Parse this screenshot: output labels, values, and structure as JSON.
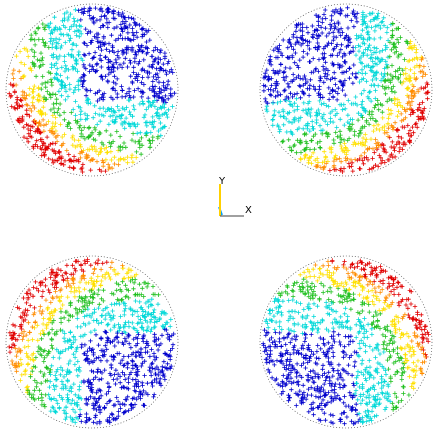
{
  "view": {
    "background": "#ffffff",
    "marker": "+",
    "field_colors": [
      "#e00000",
      "#ff8c00",
      "#ffe000",
      "#20c020",
      "#00d8d8",
      "#0000cc"
    ]
  },
  "triad": {
    "y_label": "Y",
    "x_label": "X",
    "axis_colors": {
      "y": "#ffd000",
      "x": "#404040",
      "z": "#00a0ff"
    }
  },
  "disks": [
    {
      "name": "top-left",
      "hot_dir_deg": 225
    },
    {
      "name": "top-right",
      "hot_dir_deg": 315
    },
    {
      "name": "bottom-left",
      "hot_dir_deg": 135
    },
    {
      "name": "bottom-right",
      "hot_dir_deg": 45
    }
  ]
}
